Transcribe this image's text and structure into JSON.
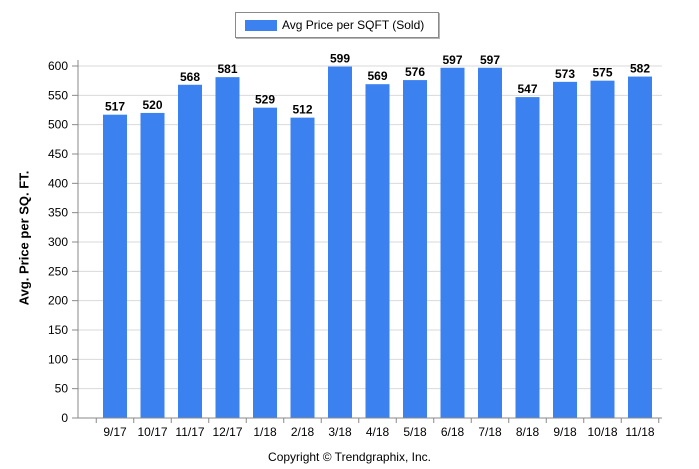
{
  "chart_data": {
    "type": "bar",
    "categories": [
      "9/17",
      "10/17",
      "11/17",
      "12/17",
      "1/18",
      "2/18",
      "3/18",
      "4/18",
      "5/18",
      "6/18",
      "7/18",
      "8/18",
      "9/18",
      "10/18",
      "11/18"
    ],
    "series": [
      {
        "name": "Avg Price per SQFT (Sold)",
        "values": [
          517,
          520,
          568,
          581,
          529,
          512,
          599,
          569,
          576,
          597,
          597,
          547,
          573,
          575,
          582
        ]
      }
    ],
    "ylabel": "Avg. Price per SQ. FT.",
    "ylim": [
      0,
      600
    ],
    "yticks": [
      0,
      50,
      100,
      150,
      200,
      250,
      300,
      350,
      400,
      450,
      500,
      550,
      600
    ],
    "grid": true,
    "legend_placement": "top-center",
    "colors": {
      "bar": "#3b82f0",
      "grid": "#d9d9d9",
      "axis": "#888888"
    }
  },
  "footer": {
    "copyright": "Copyright © Trendgraphix, Inc."
  }
}
